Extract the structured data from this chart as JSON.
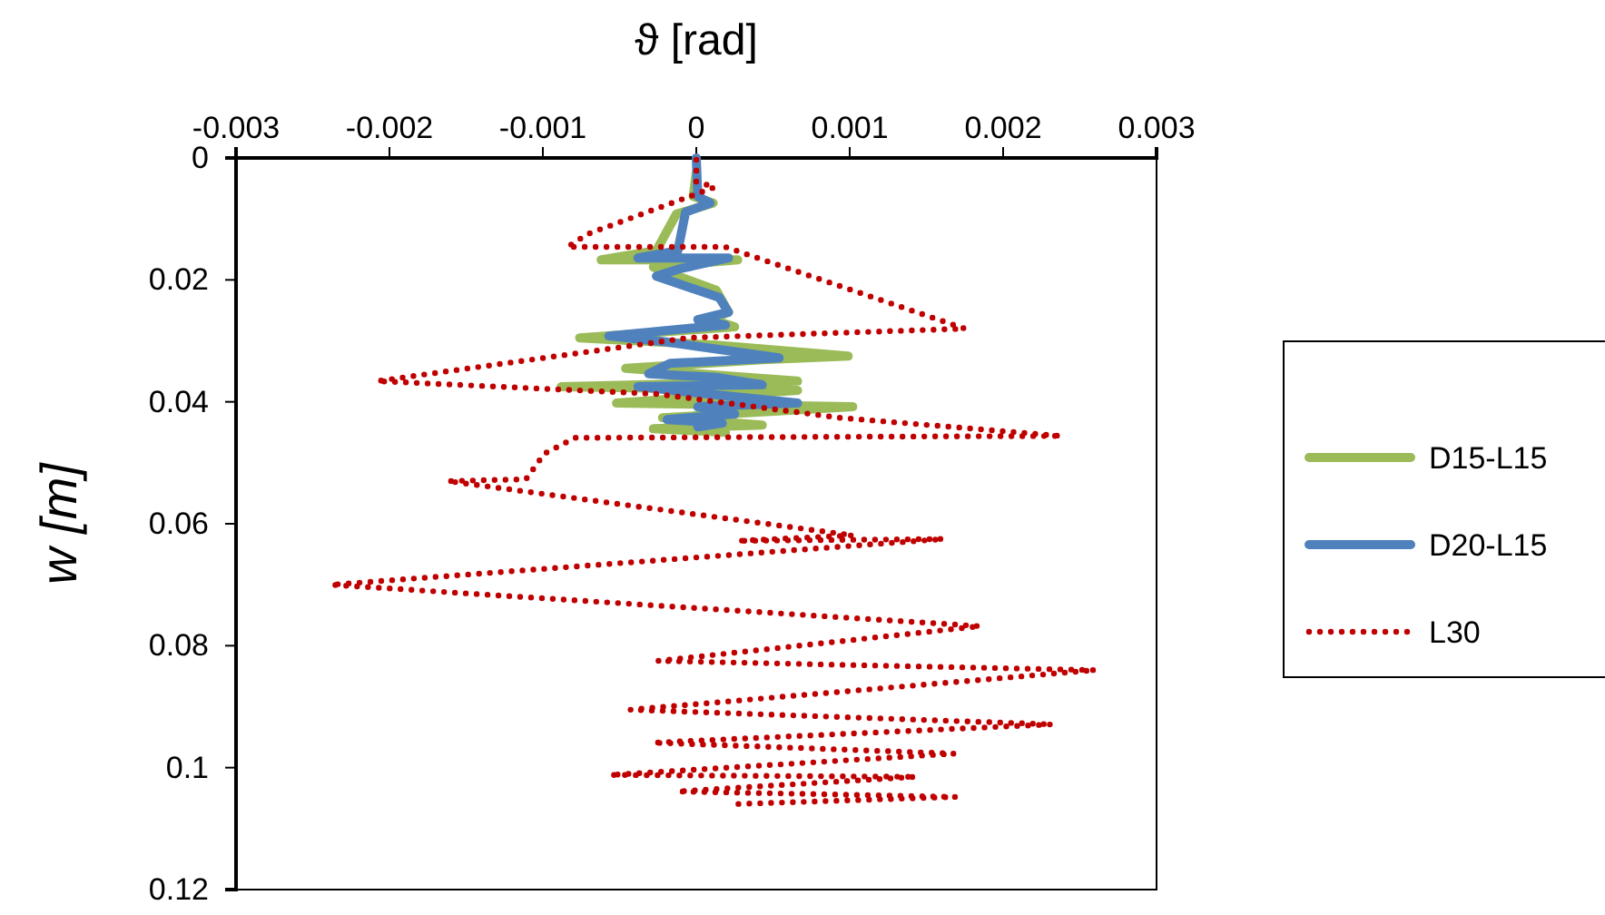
{
  "chart_data": {
    "type": "line",
    "xlabel": "ϑ [rad]",
    "ylabel": "w [m]",
    "xlim": [
      -0.003,
      0.003
    ],
    "xticks": [
      -0.003,
      -0.002,
      -0.001,
      0,
      0.001,
      0.002,
      0.003
    ],
    "ylim": [
      0.12,
      0
    ],
    "yticks": [
      0,
      0.02,
      0.04,
      0.06,
      0.08,
      0.1,
      0.12
    ],
    "grid": false,
    "legend": "right",
    "marker": "none",
    "series": [
      {
        "name": "D15-L15",
        "color": "#9bbb59",
        "line_style": "solid",
        "x": [
          0,
          -2e-05,
          0.00011,
          -0.00013,
          -0.00026,
          -0.00062,
          0.00027,
          -0.00028,
          0.00013,
          0.00021,
          0.0001,
          0.00025,
          -0.00076,
          0.00013,
          0.00099,
          0.00043,
          -0.00046,
          0.00066,
          -0.00088,
          0.00066,
          -0.00052,
          0.00102,
          -0.00022,
          0.00043,
          -0.00028,
          0.00019
        ],
        "values": [
          0.0024,
          0.0063,
          0.0074,
          0.0092,
          0.0152,
          0.0167,
          0.0167,
          0.0179,
          0.0217,
          0.0253,
          0.0265,
          0.0277,
          0.0295,
          0.0307,
          0.0325,
          0.0331,
          0.0345,
          0.0366,
          0.0375,
          0.0381,
          0.0402,
          0.0408,
          0.0426,
          0.0438,
          0.0444,
          0.045
        ]
      },
      {
        "name": "D20-L15",
        "color": "#4f81bd",
        "line_style": "solid",
        "x": [
          0,
          1e-05,
          9e-05,
          -7e-05,
          -0.00012,
          -0.00038,
          0.00021,
          -0.00011,
          -0.00026,
          0.00015,
          0.00021,
          1e-05,
          0.00019,
          -0.00057,
          -0.00022,
          0.00054,
          -0.00017,
          -0.00031,
          0.00013,
          0.00043,
          -0.00038,
          -5e-05,
          0.00066,
          1e-05,
          0.00025,
          -0.00019,
          0.00017,
          1e-05
        ],
        "values": [
          0,
          0.0063,
          0.0074,
          0.0089,
          0.0152,
          0.0164,
          0.0164,
          0.0182,
          0.0194,
          0.0229,
          0.0253,
          0.0265,
          0.0274,
          0.0292,
          0.0301,
          0.0328,
          0.0337,
          0.0354,
          0.036,
          0.0372,
          0.0375,
          0.0384,
          0.0402,
          0.0408,
          0.042,
          0.0429,
          0.0435,
          0.0441
        ]
      },
      {
        "name": "L30",
        "color": "#c00000",
        "line_style": "dotted",
        "x": [
          0,
          0,
          0.00012,
          -0.00071,
          -0.00084,
          0.00019,
          0.00175,
          -5e-05,
          -0.00208,
          -0.00026,
          0.00093,
          0.00238,
          -0.00079,
          -0.00099,
          -0.00111,
          -0.00162,
          0.00102,
          0.00027,
          0.00161,
          -0.00238,
          0.00185,
          -0.00025,
          0.0026,
          -0.00043,
          0.00232,
          -0.00028,
          0.00168,
          -0.00056,
          0.00143,
          -0.00012,
          0.00169,
          0.00022
        ],
        "values": [
          0.0003,
          0.0039,
          0.0048,
          0.0125,
          0.0146,
          0.0146,
          0.028,
          0.0295,
          0.0366,
          0.0387,
          0.0426,
          0.0456,
          0.0459,
          0.0485,
          0.0527,
          0.053,
          0.0619,
          0.0628,
          0.0625,
          0.07,
          0.0768,
          0.0825,
          0.084,
          0.0905,
          0.0929,
          0.0959,
          0.0977,
          0.1012,
          0.1015,
          0.1039,
          0.1048,
          0.106
        ]
      }
    ]
  }
}
